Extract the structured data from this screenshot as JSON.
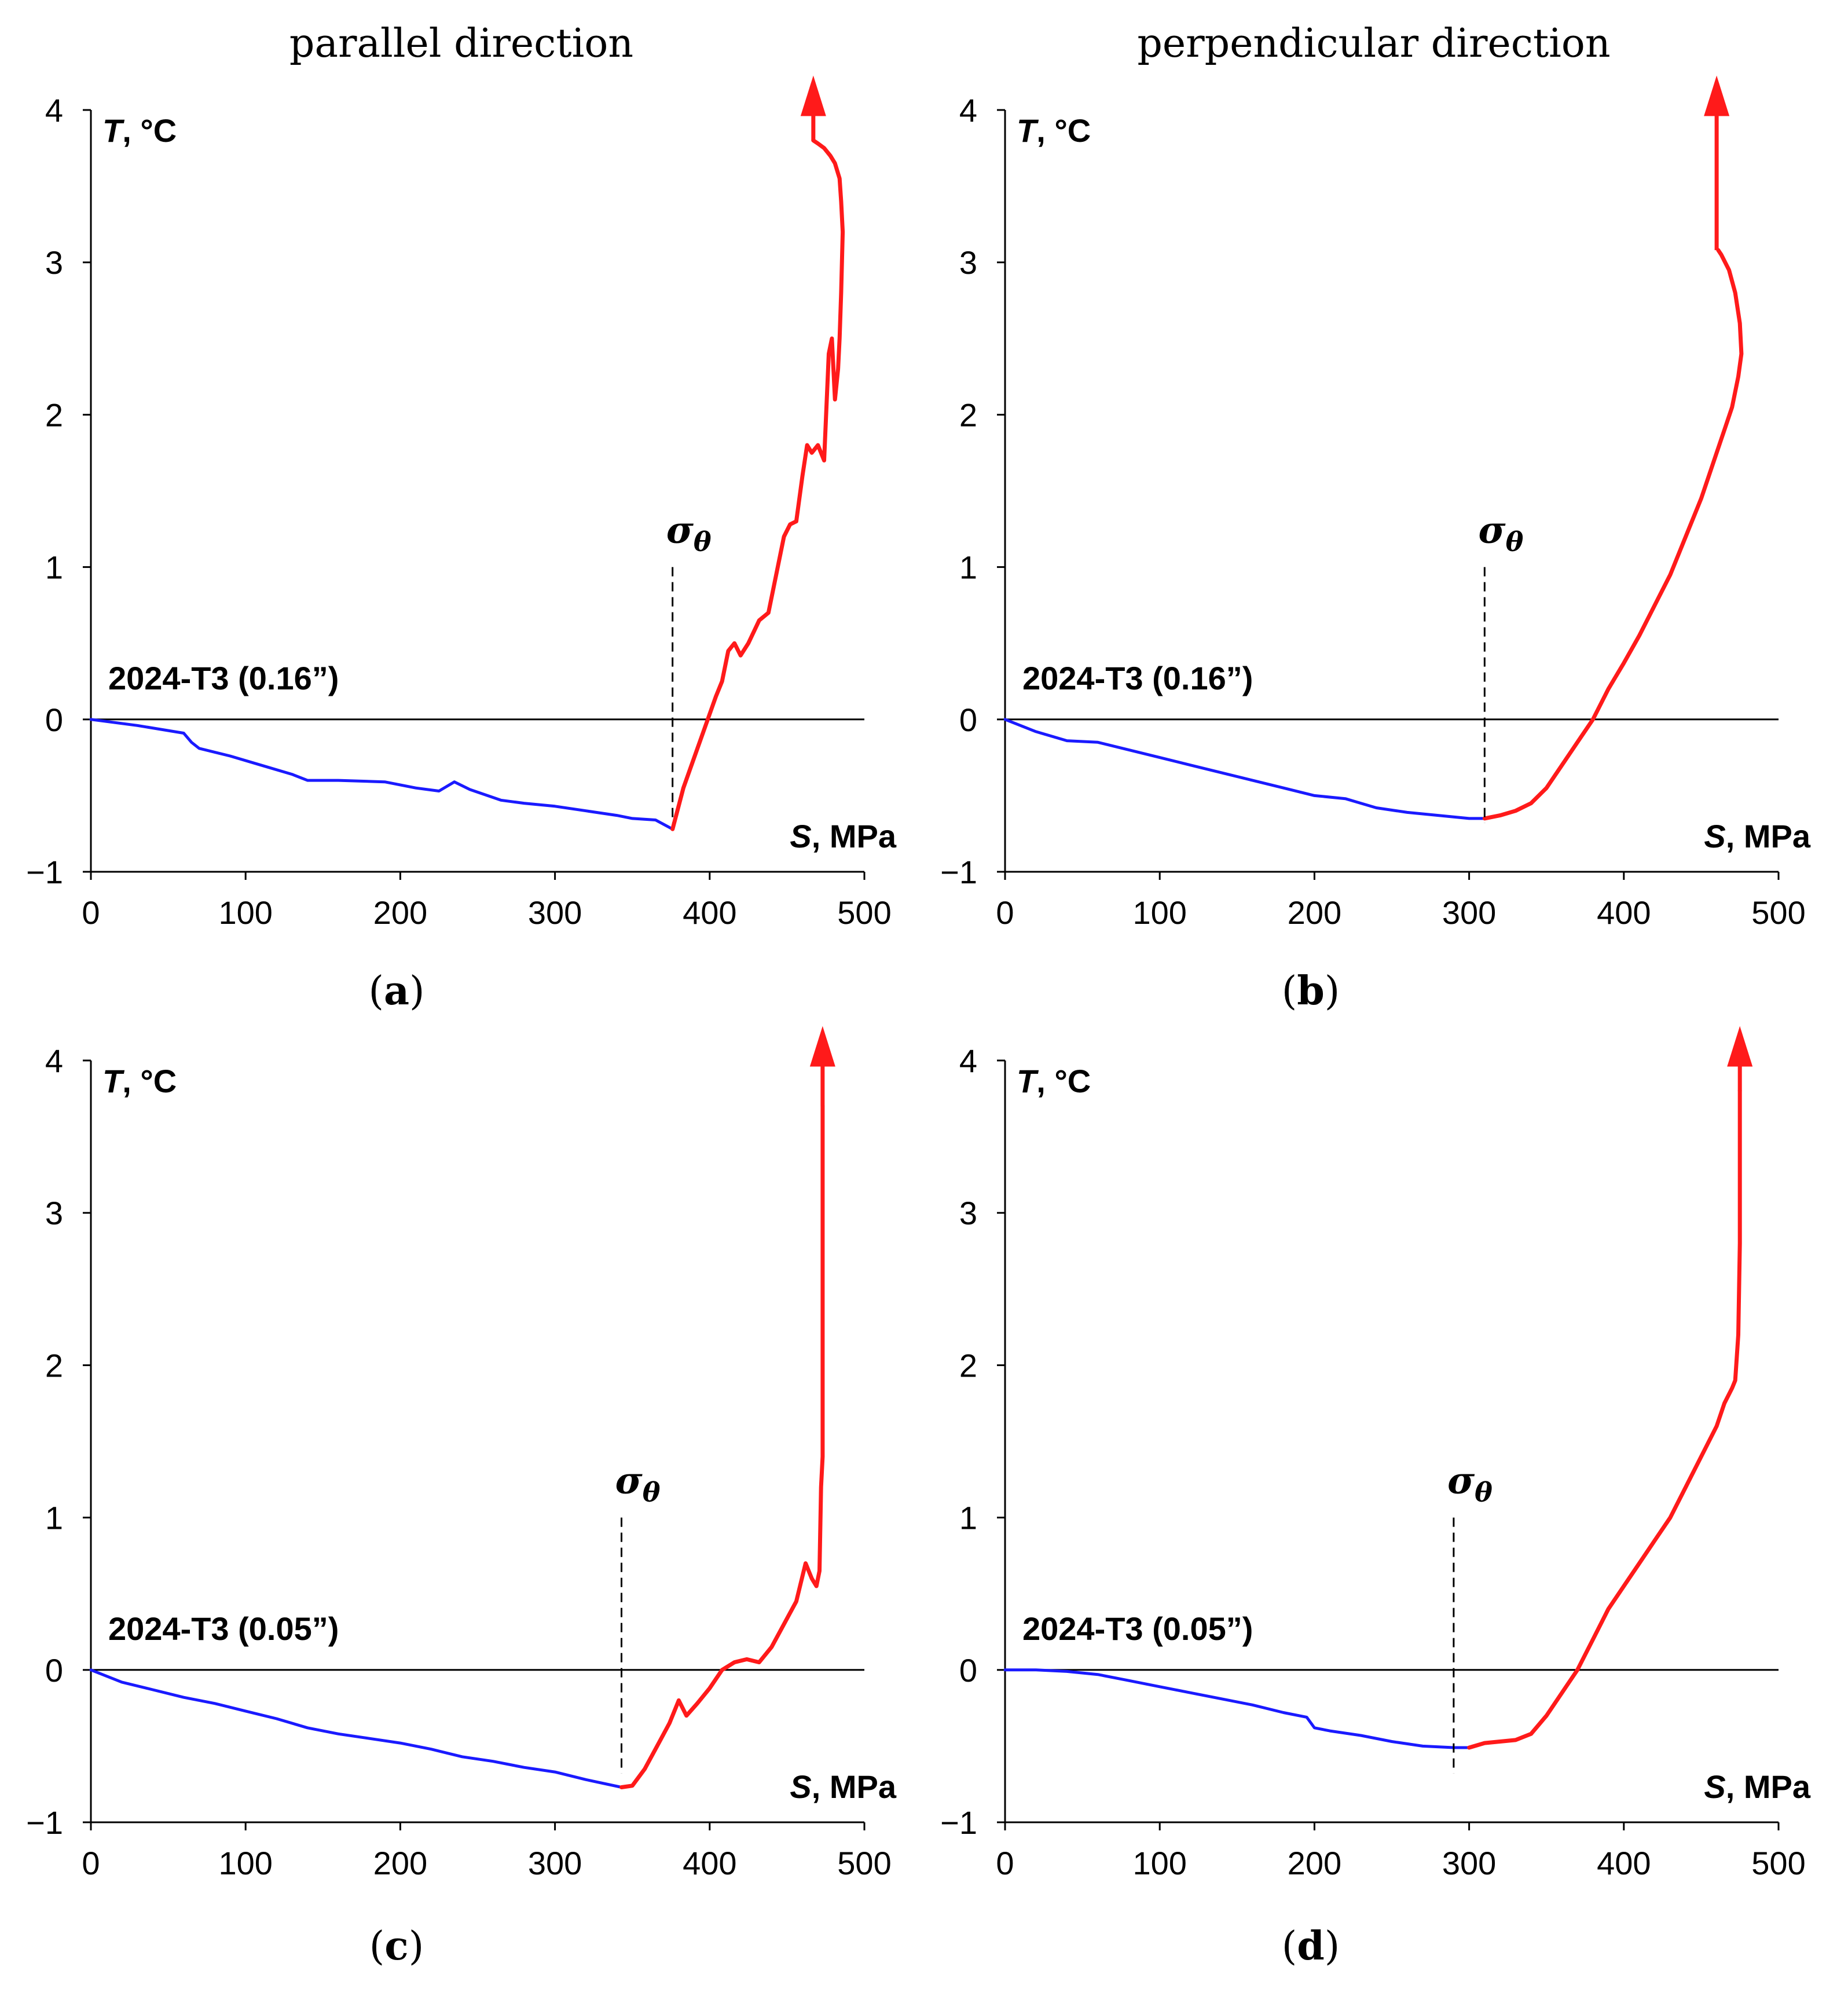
{
  "column_titles": [
    "parallel direction",
    "perpendicular direction"
  ],
  "colors": {
    "elastic": "#1a1aff",
    "plastic": "#ff1a1a",
    "axis": "#000000"
  },
  "chart_data": [
    {
      "panel": "(a)",
      "label_letter": "a",
      "type": "line",
      "material": "2024-T3 (0.16”)",
      "ylabel_var": "T",
      "ylabel_unit": ", °C",
      "xlabel_var": "S",
      "xlabel_unit": ", MPa",
      "xlim": [
        0,
        500
      ],
      "ylim": [
        -1,
        4
      ],
      "xticks": [
        0,
        100,
        200,
        300,
        400,
        500
      ],
      "yticks": [
        -1,
        0,
        1,
        2,
        3,
        4
      ],
      "sigma_label": "σ",
      "sigma_sub": "θ",
      "sigma_x": 376,
      "series": [
        {
          "name": "elastic",
          "x": [
            0,
            30,
            60,
            65,
            70,
            90,
            110,
            130,
            140,
            160,
            190,
            210,
            225,
            235,
            245,
            265,
            280,
            300,
            320,
            340,
            350,
            365,
            376
          ],
          "y": [
            0,
            -0.04,
            -0.09,
            -0.15,
            -0.19,
            -0.24,
            -0.3,
            -0.36,
            -0.4,
            -0.4,
            -0.41,
            -0.45,
            -0.47,
            -0.41,
            -0.46,
            -0.53,
            -0.55,
            -0.57,
            -0.6,
            -0.63,
            -0.65,
            -0.66,
            -0.72
          ]
        },
        {
          "name": "plastic",
          "x": [
            376,
            383,
            390,
            397,
            404,
            408,
            412,
            416,
            420,
            425,
            432,
            438,
            444,
            448,
            452,
            456,
            460,
            463,
            466,
            470,
            474,
            477,
            479,
            481,
            483,
            484,
            485,
            486,
            485,
            484,
            481,
            478,
            474,
            470,
            467
          ],
          "y": [
            -0.72,
            -0.45,
            -0.25,
            -0.05,
            0.15,
            0.25,
            0.45,
            0.5,
            0.42,
            0.5,
            0.65,
            0.7,
            1.0,
            1.2,
            1.28,
            1.3,
            1.6,
            1.8,
            1.75,
            1.8,
            1.7,
            2.4,
            2.5,
            2.1,
            2.3,
            2.5,
            2.8,
            3.2,
            3.4,
            3.55,
            3.65,
            3.7,
            3.75,
            3.78,
            3.8
          ]
        }
      ],
      "arrow_x": 467,
      "arrow_y0": 3.8,
      "arrow_y1": 4.15
    },
    {
      "panel": "(b)",
      "label_letter": "b",
      "type": "line",
      "material": "2024-T3 (0.16”)",
      "ylabel_var": "T",
      "ylabel_unit": ", °C",
      "xlabel_var": "S",
      "xlabel_unit": ", MPa",
      "xlim": [
        0,
        500
      ],
      "ylim": [
        -1,
        4
      ],
      "xticks": [
        0,
        100,
        200,
        300,
        400,
        500
      ],
      "yticks": [
        -1,
        0,
        1,
        2,
        3,
        4
      ],
      "sigma_label": "σ",
      "sigma_sub": "θ",
      "sigma_x": 310,
      "series": [
        {
          "name": "elastic",
          "x": [
            0,
            20,
            40,
            60,
            80,
            100,
            120,
            140,
            160,
            180,
            200,
            220,
            230,
            240,
            260,
            280,
            300,
            310
          ],
          "y": [
            0,
            -0.08,
            -0.14,
            -0.15,
            -0.2,
            -0.25,
            -0.3,
            -0.35,
            -0.4,
            -0.45,
            -0.5,
            -0.52,
            -0.55,
            -0.58,
            -0.61,
            -0.63,
            -0.65,
            -0.65
          ]
        },
        {
          "name": "plastic",
          "x": [
            310,
            320,
            330,
            340,
            350,
            360,
            370,
            380,
            390,
            400,
            410,
            420,
            430,
            440,
            450,
            460,
            465,
            470,
            474,
            476,
            475,
            472,
            468,
            463,
            461
          ],
          "y": [
            -0.65,
            -0.63,
            -0.6,
            -0.55,
            -0.45,
            -0.3,
            -0.15,
            0.0,
            0.2,
            0.37,
            0.55,
            0.75,
            0.95,
            1.2,
            1.45,
            1.75,
            1.9,
            2.05,
            2.25,
            2.4,
            2.6,
            2.8,
            2.95,
            3.05,
            3.08
          ]
        }
      ],
      "arrow_x": 460,
      "arrow_y0": 3.08,
      "arrow_y1": 4.15
    },
    {
      "panel": "(c)",
      "label_letter": "c",
      "type": "line",
      "material": "2024-T3 (0.05”)",
      "ylabel_var": "T",
      "ylabel_unit": ", °C",
      "xlabel_var": "S",
      "xlabel_unit": ", MPa",
      "xlim": [
        0,
        500
      ],
      "ylim": [
        -1,
        4
      ],
      "xticks": [
        0,
        100,
        200,
        300,
        400,
        500
      ],
      "yticks": [
        -1,
        0,
        1,
        2,
        3,
        4
      ],
      "sigma_label": "σ",
      "sigma_sub": "θ",
      "sigma_x": 343,
      "series": [
        {
          "name": "elastic",
          "x": [
            0,
            20,
            40,
            60,
            80,
            100,
            120,
            140,
            160,
            180,
            200,
            220,
            240,
            260,
            280,
            300,
            320,
            343
          ],
          "y": [
            0,
            -0.08,
            -0.13,
            -0.18,
            -0.22,
            -0.27,
            -0.32,
            -0.38,
            -0.42,
            -0.45,
            -0.48,
            -0.52,
            -0.57,
            -0.6,
            -0.64,
            -0.67,
            -0.72,
            -0.77
          ]
        },
        {
          "name": "plastic",
          "x": [
            343,
            350,
            358,
            366,
            374,
            380,
            385,
            392,
            400,
            408,
            416,
            424,
            432,
            440,
            448,
            456,
            462,
            466,
            469,
            471,
            472,
            473,
            473,
            473,
            473,
            473
          ],
          "y": [
            -0.77,
            -0.76,
            -0.65,
            -0.5,
            -0.35,
            -0.2,
            -0.3,
            -0.22,
            -0.12,
            0.0,
            0.05,
            0.07,
            0.05,
            0.15,
            0.3,
            0.45,
            0.7,
            0.6,
            0.55,
            0.65,
            1.2,
            1.4,
            1.6,
            2.2,
            3.0,
            3.7
          ]
        }
      ],
      "arrow_x": 473,
      "arrow_y0": 3.7,
      "arrow_y1": 4.15
    },
    {
      "panel": "(d)",
      "label_letter": "d",
      "type": "line",
      "material": "2024-T3 (0.05”)",
      "ylabel_var": "T",
      "ylabel_unit": ", °C",
      "xlabel_var": "S",
      "xlabel_unit": ", MPa",
      "xlim": [
        0,
        500
      ],
      "ylim": [
        -1,
        4
      ],
      "xticks": [
        0,
        100,
        200,
        300,
        400,
        500
      ],
      "yticks": [
        -1,
        0,
        1,
        2,
        3,
        4
      ],
      "sigma_label": "σ",
      "sigma_sub": "θ",
      "sigma_x": 290,
      "series": [
        {
          "name": "elastic",
          "x": [
            0,
            20,
            40,
            60,
            80,
            100,
            120,
            140,
            160,
            180,
            195,
            200,
            210,
            230,
            250,
            270,
            290,
            300
          ],
          "y": [
            0,
            0,
            -0.01,
            -0.03,
            -0.07,
            -0.11,
            -0.15,
            -0.19,
            -0.23,
            -0.28,
            -0.31,
            -0.38,
            -0.4,
            -0.43,
            -0.47,
            -0.5,
            -0.51,
            -0.51
          ]
        },
        {
          "name": "plastic",
          "x": [
            300,
            310,
            320,
            330,
            340,
            350,
            360,
            370,
            380,
            390,
            400,
            410,
            420,
            430,
            440,
            450,
            460,
            465,
            470,
            472,
            474,
            475,
            475,
            475,
            475
          ],
          "y": [
            -0.51,
            -0.48,
            -0.47,
            -0.46,
            -0.42,
            -0.3,
            -0.15,
            0.0,
            0.2,
            0.4,
            0.55,
            0.7,
            0.85,
            1.0,
            1.2,
            1.4,
            1.6,
            1.75,
            1.85,
            1.9,
            2.2,
            2.8,
            3.2,
            3.6,
            3.8
          ]
        }
      ],
      "arrow_x": 475,
      "arrow_y0": 3.8,
      "arrow_y1": 4.15
    }
  ]
}
